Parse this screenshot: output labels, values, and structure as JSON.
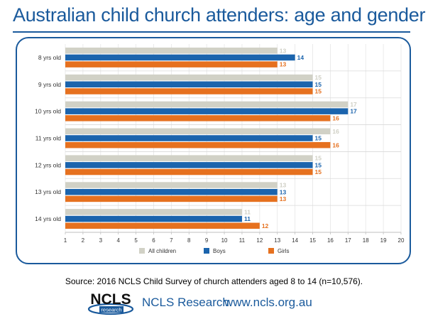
{
  "title": "Australian child church attenders: age and gender",
  "source": "Source: 2016 NCLS Child Survey of church attenders aged 8 to 14 (n=10,576).",
  "footer": {
    "org": "NCLS Research",
    "url": "www.ncls.org.au",
    "logo_text": "NCLS",
    "logo_sub": "research"
  },
  "colors": {
    "all": "#d1d1c6",
    "boys": "#1b64ad",
    "girls": "#e6711f",
    "frame": "#1a5a9c"
  },
  "chart_data": {
    "type": "bar",
    "orientation": "horizontal",
    "categories": [
      "8 yrs old",
      "9 yrs old",
      "10 yrs old",
      "11 yrs old",
      "12 yrs old",
      "13 yrs old",
      "14 yrs old"
    ],
    "series": [
      {
        "name": "All children",
        "values": [
          13,
          15,
          17,
          16,
          15,
          13,
          11
        ]
      },
      {
        "name": "Boys",
        "values": [
          14,
          15,
          17,
          15,
          15,
          13,
          11
        ]
      },
      {
        "name": "Girls",
        "values": [
          13,
          15,
          16,
          16,
          15,
          13,
          12
        ]
      }
    ],
    "xlim": [
      1,
      20
    ],
    "xticks": [
      "1",
      "2",
      "3",
      "4",
      "5",
      "6",
      "7",
      "8",
      "9",
      "10",
      "11",
      "12",
      "13",
      "14",
      "15",
      "16",
      "17",
      "18",
      "19",
      "20"
    ],
    "grid": true,
    "legend_position": "bottom"
  }
}
